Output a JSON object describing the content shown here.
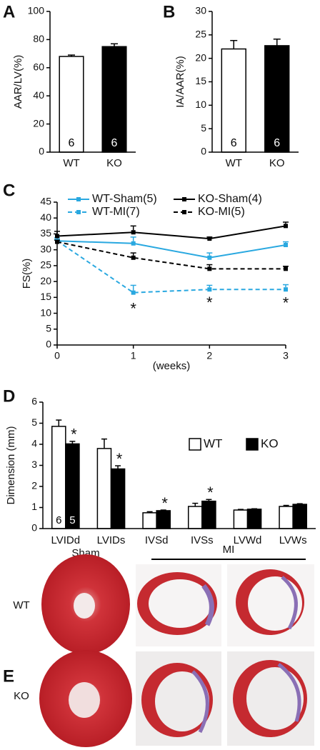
{
  "chart_data": [
    {
      "type": "bar",
      "panel": "A",
      "ylabel": "AAR/LV(%)",
      "categories": [
        "WT",
        "KO"
      ],
      "values": [
        68,
        75
      ],
      "errors": [
        1,
        2
      ],
      "n": [
        6,
        6
      ],
      "colors": [
        "#ffffff",
        "#000000"
      ],
      "ylim": [
        0,
        100
      ],
      "yticks": [
        0,
        20,
        40,
        60,
        80,
        100
      ]
    },
    {
      "type": "bar",
      "panel": "B",
      "ylabel": "IA/AAR(%)",
      "categories": [
        "WT",
        "KO"
      ],
      "values": [
        22,
        22.7
      ],
      "errors": [
        1.8,
        1.4
      ],
      "n": [
        6,
        6
      ],
      "colors": [
        "#ffffff",
        "#000000"
      ],
      "ylim": [
        0,
        30
      ],
      "yticks": [
        0,
        5,
        10,
        15,
        20,
        25,
        30
      ]
    },
    {
      "type": "line",
      "panel": "C",
      "ylabel": "FS(%)",
      "xlabel": "(weeks)",
      "x": [
        0,
        1,
        2,
        3
      ],
      "xlim": [
        0,
        3
      ],
      "xticks": [
        0,
        1,
        2,
        3
      ],
      "ylim": [
        0,
        45
      ],
      "yticks": [
        0,
        5,
        10,
        15,
        20,
        25,
        30,
        35,
        40,
        45
      ],
      "series": [
        {
          "name": "WT-Sham(5)",
          "color": "#29a8e0",
          "linestyle": "solid",
          "values": [
            32.8,
            32,
            27.5,
            31.5
          ],
          "errors": [
            1,
            2,
            1.5,
            1
          ]
        },
        {
          "name": "KO-Sham(4)",
          "color": "#000000",
          "linestyle": "solid",
          "values": [
            34.3,
            35.5,
            33.5,
            37.5
          ],
          "errors": [
            1.5,
            2,
            0.5,
            1.2
          ]
        },
        {
          "name": "WT-MI(7)",
          "color": "#29a8e0",
          "linestyle": "dashed",
          "values": [
            32.8,
            16.5,
            17.5,
            17.5
          ],
          "errors": [
            0.5,
            2.3,
            1.3,
            1.5
          ]
        },
        {
          "name": "KO-MI(5)",
          "color": "#000000",
          "linestyle": "dashed",
          "values": [
            32.5,
            27.5,
            24,
            24
          ],
          "errors": [
            0.5,
            1.5,
            1.3,
            0.8
          ]
        }
      ],
      "significance_mark": "*",
      "significant_x": [
        1,
        2,
        3
      ]
    },
    {
      "type": "grouped_bar",
      "panel": "D",
      "ylabel": "Dimension (mm)",
      "categories": [
        "LVIDd",
        "LVIDs",
        "IVSd",
        "IVSs",
        "LVWd",
        "LVWs"
      ],
      "ylim": [
        0,
        6
      ],
      "yticks": [
        0,
        1,
        2,
        3,
        4,
        5,
        6
      ],
      "series": [
        {
          "name": "WT",
          "color": "#ffffff",
          "n": 6,
          "values": [
            4.85,
            3.8,
            0.75,
            1.05,
            0.88,
            1.05
          ],
          "errors": [
            0.3,
            0.45,
            0.05,
            0.15,
            0.03,
            0.05
          ],
          "significant": [
            false,
            false,
            false,
            false,
            false,
            false
          ]
        },
        {
          "name": "KO",
          "color": "#000000",
          "n": 5,
          "values": [
            4.02,
            2.83,
            0.85,
            1.3,
            0.92,
            1.15
          ],
          "errors": [
            0.12,
            0.15,
            0.03,
            0.08,
            0.02,
            0.03
          ],
          "significant": [
            true,
            true,
            true,
            true,
            false,
            false
          ]
        }
      ],
      "significance_mark": "*"
    }
  ],
  "panel_E": {
    "panel": "E",
    "columns": [
      "Sham",
      "MI"
    ],
    "rows": [
      "WT",
      "KO"
    ]
  }
}
